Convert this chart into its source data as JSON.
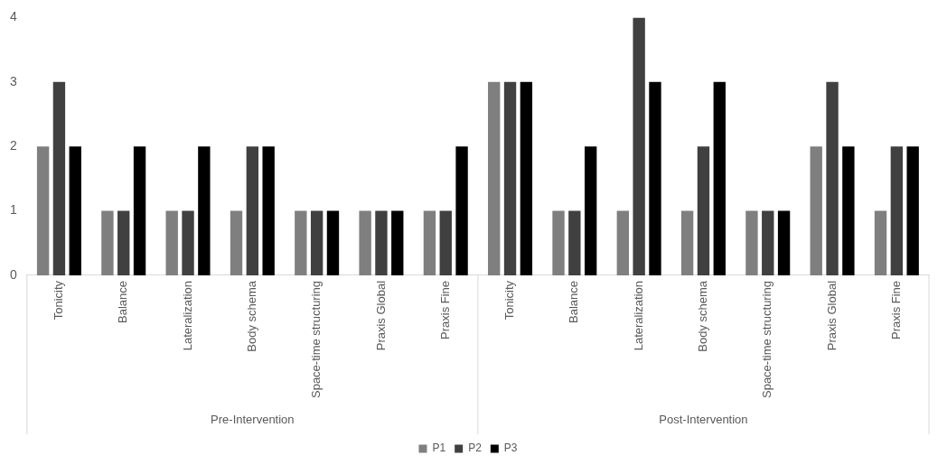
{
  "chart_data": {
    "type": "bar",
    "categories": [
      "Tonicity",
      "Balance",
      "Lateralization",
      "Body schema",
      "Space-time structuring",
      "Praxis Global",
      "Praxis Fine",
      "Tonicity",
      "Balance",
      "Lateralization",
      "Body schema",
      "Space-time structuring",
      "Praxis Global",
      "Praxis Fine"
    ],
    "series": [
      {
        "name": "P1",
        "color": "#7f7f7f",
        "values": [
          2,
          1,
          1,
          1,
          1,
          1,
          1,
          3,
          1,
          1,
          1,
          1,
          2,
          1
        ]
      },
      {
        "name": "P2",
        "color": "#404040",
        "values": [
          3,
          1,
          1,
          2,
          1,
          1,
          1,
          3,
          1,
          4,
          2,
          1,
          3,
          2
        ]
      },
      {
        "name": "P3",
        "color": "#000000",
        "values": [
          2,
          2,
          2,
          2,
          1,
          1,
          2,
          3,
          2,
          3,
          3,
          1,
          2,
          2
        ]
      }
    ],
    "annotations": [
      "Pre-Intervention",
      "Post-Intervention"
    ],
    "ylim": [
      0,
      4
    ],
    "yticks": [
      0,
      1,
      2,
      3,
      4
    ],
    "grid": false,
    "legend": "bottom"
  }
}
